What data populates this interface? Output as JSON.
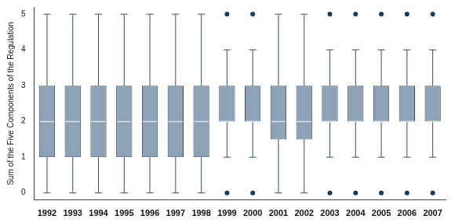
{
  "chart_data": {
    "type": "boxplot",
    "y_label": "Sum of the Five Components of the Regulation",
    "categories": [
      "1992",
      "1993",
      "1994",
      "1995",
      "1996",
      "1997",
      "1998",
      "1999",
      "2000",
      "2001",
      "2002",
      "2003",
      "2004",
      "2005",
      "2006",
      "2007"
    ],
    "min": [
      0,
      0,
      0,
      0,
      0,
      0,
      0,
      1,
      1,
      0,
      0,
      1,
      1,
      1,
      1,
      1
    ],
    "q1": [
      1,
      1,
      1,
      1,
      1,
      1,
      1,
      2,
      2,
      1.5,
      1.5,
      2,
      2,
      2,
      2,
      2
    ],
    "median": [
      2,
      2,
      2,
      2,
      2,
      2,
      2,
      2,
      2,
      2,
      2,
      2,
      2,
      2,
      2,
      2
    ],
    "q3": [
      3,
      3,
      3,
      3,
      3,
      3,
      3,
      3,
      3,
      3,
      3,
      3,
      3,
      3,
      3,
      3
    ],
    "max": [
      5,
      5,
      5,
      5,
      5,
      5,
      5,
      4,
      4,
      5,
      5,
      4,
      4,
      4,
      4,
      4
    ],
    "outliers": [
      [],
      [],
      [],
      [],
      [],
      [],
      [],
      [
        0,
        5
      ],
      [
        0,
        5
      ],
      [],
      [],
      [
        0,
        5
      ],
      [
        0,
        5
      ],
      [
        0,
        5
      ],
      [
        0,
        5
      ],
      [
        0,
        5
      ]
    ],
    "color": "#8da2b6",
    "ylim": [
      -0.2,
      5.2
    ],
    "yticks": [
      0,
      1,
      2,
      3,
      4,
      5
    ],
    "grid": false
  }
}
